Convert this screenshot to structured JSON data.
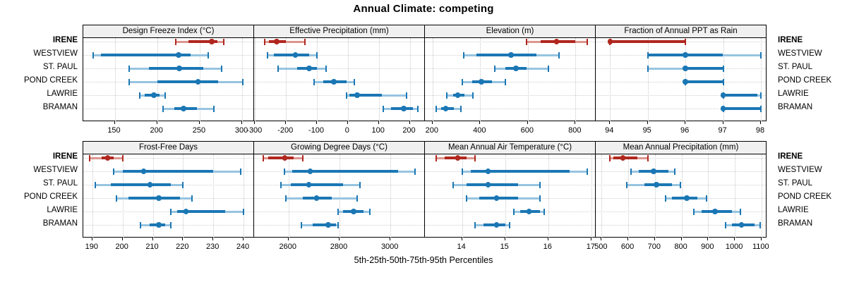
{
  "title": "Annual Climate: competing",
  "xlabel": "5th-25th-50th-75th-95th Percentiles",
  "locations": [
    "IRENE",
    "WESTVIEW",
    "ST. PAUL",
    "POND CREEK",
    "LAWRIE",
    "BRAMAN"
  ],
  "highlight_location": "IRENE",
  "colors": {
    "blue_dark": "#1b77b4",
    "blue_light": "#97c4e0",
    "red_dark": "#b0271e",
    "red_light": "#dd968e",
    "strip_bg": "#f0f0f0",
    "panel_border": "#000000",
    "grid": "#c9c9c9"
  },
  "chart_data": {
    "type": "dotplot-intervals",
    "subtype": "trellis 2x4 panels, horizontal 5-25-50-75-95 percentile bars per location",
    "percentiles": [
      5,
      25,
      50,
      75,
      95
    ],
    "row_order_top_to_bottom": [
      "IRENE",
      "WESTVIEW",
      "ST. PAUL",
      "POND CREEK",
      "LAWRIE",
      "BRAMAN"
    ],
    "panels": [
      {
        "grid": [
          0,
          0
        ],
        "title": "Design Freeze Index (°C)",
        "domain": [
          113,
          314
        ],
        "ticks": [
          150,
          200,
          250,
          300
        ],
        "values": {
          "IRENE": [
            222,
            237,
            264,
            271,
            278
          ],
          "WESTVIEW": [
            125,
            134,
            225,
            239,
            260
          ],
          "ST. PAUL": [
            167,
            190,
            226,
            254,
            276
          ],
          "POND CREEK": [
            167,
            200,
            248,
            272,
            301
          ],
          "LAWRIE": [
            179,
            185,
            196,
            203,
            209
          ],
          "BRAMAN": [
            207,
            220,
            231,
            247,
            267
          ]
        }
      },
      {
        "grid": [
          0,
          1
        ],
        "title": "Effective Precipitation (mm)",
        "domain": [
          -303,
          249
        ],
        "ticks": [
          -300,
          -200,
          -100,
          0,
          100,
          200
        ],
        "values": {
          "IRENE": [
            -270,
            -255,
            -230,
            -200,
            -140
          ],
          "WESTVIEW": [
            -260,
            -240,
            -170,
            -125,
            -100
          ],
          "ST. PAUL": [
            -225,
            -165,
            -125,
            -100,
            -70
          ],
          "POND CREEK": [
            -110,
            -80,
            -45,
            -5,
            20
          ],
          "LAWRIE": [
            -5,
            5,
            30,
            110,
            190
          ],
          "BRAMAN": [
            115,
            140,
            180,
            210,
            225
          ]
        }
      },
      {
        "grid": [
          0,
          2
        ],
        "title": "Elevation (m)",
        "domain": [
          168,
          885
        ],
        "ticks": [
          200,
          400,
          600,
          800
        ],
        "values": {
          "IRENE": [
            595,
            655,
            720,
            800,
            850
          ],
          "WESTVIEW": [
            330,
            385,
            530,
            635,
            730
          ],
          "ST. PAUL": [
            460,
            505,
            550,
            595,
            685
          ],
          "POND CREEK": [
            325,
            365,
            405,
            450,
            505
          ],
          "LAWRIE": [
            260,
            285,
            305,
            335,
            370
          ],
          "BRAMAN": [
            215,
            235,
            255,
            290,
            320
          ]
        }
      },
      {
        "grid": [
          0,
          3
        ],
        "title": "Fraction of Annual PPT as Rain",
        "domain": [
          93.62,
          98.15
        ],
        "ticks": [
          94,
          95,
          96,
          97,
          98
        ],
        "values": {
          "IRENE": [
            94,
            94,
            94,
            96,
            96
          ],
          "WESTVIEW": [
            95,
            95,
            96,
            97,
            98
          ],
          "ST. PAUL": [
            95,
            96,
            96,
            97,
            97
          ],
          "POND CREEK": [
            96,
            96,
            96,
            97,
            97
          ],
          "LAWRIE": [
            97,
            97,
            97,
            97.9,
            98
          ],
          "BRAMAN": [
            97,
            97,
            97,
            98,
            98
          ]
        }
      },
      {
        "grid": [
          1,
          0
        ],
        "title": "Frost-Free Days",
        "domain": [
          187,
          243.5
        ],
        "ticks": [
          190,
          200,
          210,
          220,
          230,
          240
        ],
        "values": {
          "IRENE": [
            189,
            193,
            195,
            197,
            200
          ],
          "WESTVIEW": [
            197,
            200,
            207,
            230,
            239
          ],
          "ST. PAUL": [
            191,
            196,
            209,
            216,
            220
          ],
          "POND CREEK": [
            198,
            202,
            212,
            219,
            223
          ],
          "LAWRIE": [
            216,
            218,
            221,
            234,
            240
          ],
          "BRAMAN": [
            206,
            209,
            212,
            214,
            216
          ]
        }
      },
      {
        "grid": [
          1,
          1
        ],
        "title": "Growing Degree Days (°C)",
        "domain": [
          2465,
          3135
        ],
        "ticks": [
          2600,
          2800,
          3000
        ],
        "values": {
          "IRENE": [
            2500,
            2520,
            2585,
            2620,
            2655
          ],
          "WESTVIEW": [
            2585,
            2615,
            2685,
            3030,
            3095
          ],
          "ST. PAUL": [
            2570,
            2610,
            2680,
            2815,
            2880
          ],
          "POND CREEK": [
            2590,
            2655,
            2710,
            2770,
            2870
          ],
          "LAWRIE": [
            2795,
            2815,
            2855,
            2895,
            2920
          ],
          "BRAMAN": [
            2650,
            2695,
            2755,
            2785,
            2795
          ]
        }
      },
      {
        "grid": [
          1,
          2
        ],
        "title": "Mean Annual Air Temperature (°C)",
        "domain": [
          13.14,
          17.1
        ],
        "ticks": [
          14,
          15,
          16,
          17
        ],
        "values": {
          "IRENE": [
            13.4,
            13.6,
            13.9,
            14.1,
            14.3
          ],
          "WESTVIEW": [
            14.0,
            14.2,
            14.6,
            16.5,
            16.9
          ],
          "ST. PAUL": [
            13.8,
            14.1,
            14.6,
            15.3,
            15.8
          ],
          "POND CREEK": [
            14.1,
            14.4,
            14.8,
            15.3,
            15.8
          ],
          "LAWRIE": [
            15.2,
            15.35,
            15.55,
            15.8,
            15.9
          ],
          "BRAMAN": [
            14.3,
            14.5,
            14.8,
            15.0,
            15.1
          ]
        }
      },
      {
        "grid": [
          1,
          3
        ],
        "title": "Mean Annual Precipitation (mm)",
        "domain": [
          478,
          1119
        ],
        "ticks": [
          500,
          600,
          700,
          800,
          900,
          1000,
          1100
        ],
        "values": {
          "IRENE": [
            530,
            545,
            580,
            635,
            675
          ],
          "WESTVIEW": [
            610,
            640,
            695,
            750,
            775
          ],
          "ST. PAUL": [
            595,
            660,
            705,
            765,
            795
          ],
          "POND CREEK": [
            740,
            765,
            820,
            860,
            895
          ],
          "LAWRIE": [
            845,
            875,
            925,
            990,
            1020
          ],
          "BRAMAN": [
            965,
            990,
            1025,
            1075,
            1095
          ]
        }
      }
    ]
  }
}
